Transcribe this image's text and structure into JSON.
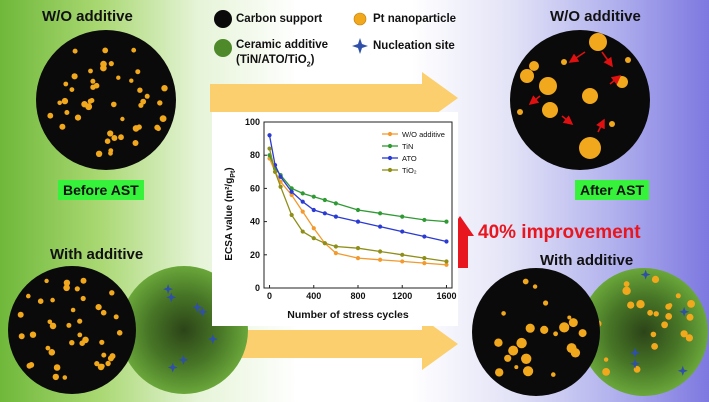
{
  "labels": {
    "top_left_title": "W/O additive",
    "top_right_title": "W/O additive",
    "bottom_left_title": "With additive",
    "bottom_right_title": "With additive",
    "before_ast": "Before AST",
    "after_ast": "After AST",
    "improvement": "40% improvement"
  },
  "legend": {
    "carbon_support": "Carbon support",
    "ceramic_additive": "Ceramic additive",
    "ceramic_additive_detail_pre": "(TiN/ATO/TiO",
    "ceramic_additive_detail_sub": "2",
    "ceramic_additive_detail_post": ")",
    "pt_nanoparticle": "Pt nanoparticle",
    "nucleation_site": "Nucleation site"
  },
  "colors": {
    "carbon": "#0a0a0a",
    "ceramic": "#4e8a2a",
    "pt": "#f2a81c",
    "nucleation": "#2f4fa8",
    "arrow": "#fbcf6e",
    "improvement": "#e8171f",
    "ast_label_bg": "#36f23a"
  },
  "chart_data": {
    "type": "line",
    "xlabel": "Number of stress cycles",
    "ylabel": "ECSA value (m²/g",
    "ylabel_sub": "Pt",
    "ylabel_end": ")",
    "xlim": [
      -50,
      1650
    ],
    "ylim": [
      0,
      100
    ],
    "x_ticks": [
      0,
      400,
      800,
      1200,
      1600
    ],
    "y_ticks": [
      0,
      20,
      40,
      60,
      80,
      100
    ],
    "legend_position": "top-right",
    "series": [
      {
        "name": "W/O additive",
        "color": "#f29a2e",
        "marker": "o",
        "x": [
          0,
          50,
          100,
          200,
          300,
          400,
          500,
          600,
          800,
          1000,
          1200,
          1400,
          1600
        ],
        "y": [
          78,
          70,
          64,
          56,
          46,
          36,
          27,
          21,
          18,
          17,
          16,
          15,
          14
        ]
      },
      {
        "name": "TiN",
        "color": "#2f9a33",
        "marker": "o",
        "x": [
          0,
          50,
          100,
          200,
          300,
          400,
          500,
          600,
          800,
          1000,
          1200,
          1400,
          1600
        ],
        "y": [
          80,
          72,
          68,
          60,
          57,
          55,
          53,
          51,
          47,
          45,
          43,
          41,
          40
        ]
      },
      {
        "name": "ATO",
        "color": "#2a3ad2",
        "marker": "o",
        "x": [
          0,
          50,
          100,
          200,
          300,
          400,
          500,
          600,
          800,
          1000,
          1200,
          1400,
          1600
        ],
        "y": [
          92,
          74,
          67,
          58,
          52,
          47,
          45,
          43,
          40,
          37,
          34,
          31,
          28
        ]
      },
      {
        "name": "TiO₂",
        "color": "#8e8e18",
        "marker": "o",
        "x": [
          0,
          50,
          100,
          200,
          300,
          400,
          500,
          600,
          800,
          1000,
          1200,
          1400,
          1600
        ],
        "y": [
          84,
          70,
          61,
          44,
          34,
          30,
          27,
          25,
          24,
          22,
          20,
          18,
          16
        ]
      }
    ]
  }
}
